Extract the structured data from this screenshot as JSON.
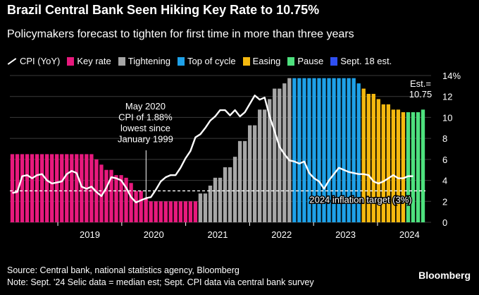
{
  "chart_data": {
    "type": "bar",
    "title": "Brazil Central Bank Seen Hiking Key Rate to 10.75%",
    "subtitle": "Policymakers forecast to tighten for first time in more than three years",
    "ylim": [
      0,
      14
    ],
    "y_ticks": [
      0,
      2,
      4,
      6,
      8,
      10,
      12
    ],
    "y_top_label": "14%",
    "x_ticks": [
      "2019",
      "2020",
      "2021",
      "2022",
      "2023",
      "2024"
    ],
    "x_start_decimal_year": 2018.25,
    "x_end_decimal_year": 2024.75,
    "legend": [
      {
        "key": "cpi",
        "label": "CPI (YoY)",
        "color": "#ffffff",
        "kind": "line"
      },
      {
        "key": "key_rate",
        "label": "Key rate",
        "color": "#e8197d",
        "kind": "bar"
      },
      {
        "key": "tightening",
        "label": "Tightening",
        "color": "#a6a6a6",
        "kind": "bar"
      },
      {
        "key": "top",
        "label": "Top of cycle",
        "color": "#1ea1e8",
        "kind": "bar"
      },
      {
        "key": "easing",
        "label": "Easing",
        "color": "#f5b90f",
        "kind": "bar"
      },
      {
        "key": "pause",
        "label": "Pause",
        "color": "#4ee07e",
        "kind": "bar"
      },
      {
        "key": "est",
        "label": "Sept. 18 est.",
        "color": "#2f4ff2",
        "kind": "bar"
      }
    ],
    "series": [
      {
        "name": "Selic key rate",
        "start": "2018-04",
        "values": [
          6.5,
          6.5,
          6.5,
          6.5,
          6.5,
          6.5,
          6.5,
          6.5,
          6.5,
          6.5,
          6.5,
          6.5,
          6.5,
          6.5,
          6.5,
          6.5,
          6.5,
          6.0,
          5.5,
          5.0,
          5.0,
          4.5,
          4.5,
          4.25,
          3.75,
          3.0,
          3.0,
          2.25,
          2.0,
          2.0,
          2.0,
          2.0,
          2.0,
          2.0,
          2.0,
          2.0,
          2.0,
          2.0,
          2.75,
          2.75,
          3.5,
          4.25,
          4.25,
          5.25,
          5.25,
          6.25,
          7.75,
          7.75,
          9.25,
          9.25,
          10.75,
          10.75,
          11.75,
          12.75,
          12.75,
          13.25,
          13.75,
          13.75,
          13.75,
          13.75,
          13.75,
          13.75,
          13.75,
          13.75,
          13.75,
          13.75,
          13.75,
          13.75,
          13.75,
          13.75,
          13.25,
          12.75,
          12.25,
          12.25,
          11.75,
          11.25,
          11.25,
          10.75,
          10.75,
          10.5,
          10.5,
          10.5,
          10.5,
          10.75
        ],
        "phases": [
          "key_rate",
          "key_rate",
          "key_rate",
          "key_rate",
          "key_rate",
          "key_rate",
          "key_rate",
          "key_rate",
          "key_rate",
          "key_rate",
          "key_rate",
          "key_rate",
          "key_rate",
          "key_rate",
          "key_rate",
          "key_rate",
          "key_rate",
          "key_rate",
          "key_rate",
          "key_rate",
          "key_rate",
          "key_rate",
          "key_rate",
          "key_rate",
          "key_rate",
          "key_rate",
          "key_rate",
          "key_rate",
          "key_rate",
          "key_rate",
          "key_rate",
          "key_rate",
          "key_rate",
          "key_rate",
          "key_rate",
          "key_rate",
          "key_rate",
          "key_rate",
          "tightening",
          "tightening",
          "tightening",
          "tightening",
          "tightening",
          "tightening",
          "tightening",
          "tightening",
          "tightening",
          "tightening",
          "tightening",
          "tightening",
          "tightening",
          "tightening",
          "tightening",
          "tightening",
          "tightening",
          "tightening",
          "tightening",
          "top",
          "top",
          "top",
          "top",
          "top",
          "top",
          "top",
          "top",
          "top",
          "top",
          "top",
          "top",
          "top",
          "top",
          "easing",
          "easing",
          "easing",
          "easing",
          "easing",
          "easing",
          "easing",
          "easing",
          "easing",
          "pause",
          "pause",
          "pause",
          "pause",
          "est"
        ]
      },
      {
        "name": "CPI (YoY)",
        "start": "2018-04",
        "values": [
          2.8,
          2.9,
          4.4,
          4.5,
          4.2,
          4.5,
          4.6,
          4.0,
          3.7,
          3.8,
          3.9,
          4.6,
          4.9,
          4.7,
          3.4,
          3.2,
          3.4,
          2.9,
          2.5,
          3.3,
          4.3,
          4.2,
          4.0,
          3.3,
          2.4,
          1.9,
          2.1,
          2.3,
          2.4,
          3.1,
          3.9,
          4.3,
          4.5,
          4.5,
          5.2,
          6.1,
          6.8,
          8.1,
          8.4,
          9.0,
          9.7,
          10.1,
          10.7,
          10.7,
          10.2,
          10.7,
          10.1,
          10.5,
          11.3,
          12.1,
          11.7,
          11.9,
          10.1,
          8.7,
          7.2,
          6.5,
          5.9,
          5.8,
          5.6,
          5.8,
          4.7,
          4.2,
          3.9,
          3.2,
          4.0,
          4.6,
          5.2,
          5.0,
          4.8,
          4.7,
          4.6,
          4.6,
          4.5,
          3.9,
          3.7,
          3.9,
          4.2,
          4.5,
          4.2,
          4.2,
          4.4,
          4.4
        ]
      },
      {
        "name": "2024 inflation target",
        "value": 3.0
      }
    ],
    "annotations": {
      "low": {
        "lines": [
          "May 2020",
          "CPI of 1.88%",
          "lowest since",
          "January 1999"
        ],
        "x_decimal_year": 2020.37
      },
      "target": "2024 inflation target (3%)",
      "estimate": {
        "lines": [
          "Est.=",
          "10.75"
        ]
      }
    }
  },
  "footer": {
    "source": "Source: Central bank, national statistics agency, Bloomberg",
    "note": "Note: Sept. '24 Selic data = median est; Sept. CPI data via central bank survey",
    "brand": "Bloomberg"
  }
}
